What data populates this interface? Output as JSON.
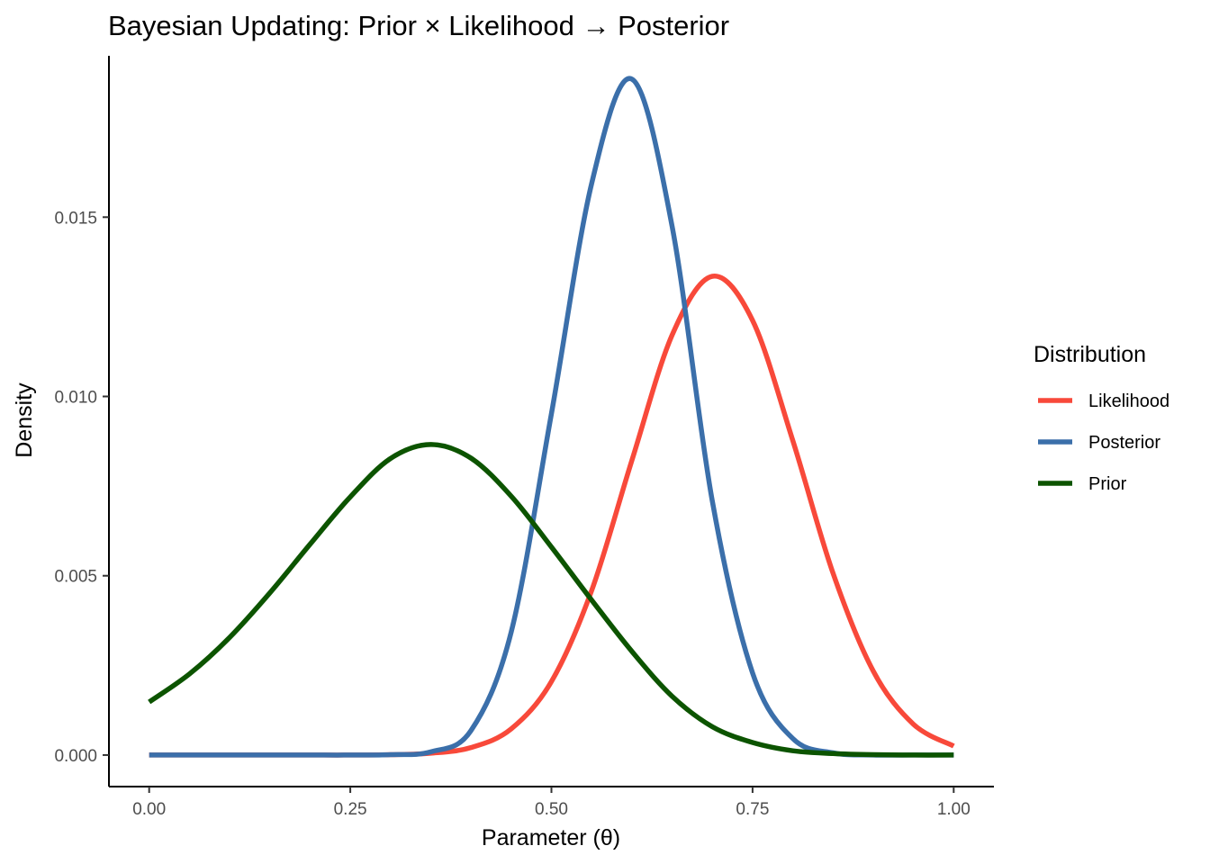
{
  "chart_data": {
    "type": "line",
    "title": "Bayesian Updating: Prior × Likelihood → Posterior",
    "xlabel": "Parameter (θ)",
    "ylabel": "Density",
    "xlim": [
      -0.05,
      1.05
    ],
    "ylim": [
      -0.00088,
      0.0195
    ],
    "x_ticks": [
      0.0,
      0.25,
      0.5,
      0.75,
      1.0
    ],
    "x_tick_labels": [
      "0.00",
      "0.25",
      "0.50",
      "0.75",
      "1.00"
    ],
    "y_ticks": [
      0.0,
      0.005,
      0.01,
      0.015
    ],
    "y_tick_labels": [
      "0.000",
      "0.005",
      "0.010",
      "0.015"
    ],
    "grid": false,
    "legend": {
      "title": "Distribution",
      "position": "right"
    },
    "x": [
      0.0,
      0.05,
      0.1,
      0.15,
      0.2,
      0.25,
      0.3,
      0.35,
      0.4,
      0.45,
      0.5,
      0.55,
      0.6,
      0.65,
      0.7,
      0.75,
      0.8,
      0.85,
      0.9,
      0.95,
      1.0
    ],
    "series": [
      {
        "name": "Likelihood",
        "color": "#F8493A",
        "values": [
          0.0,
          0.0,
          0.0,
          0.0,
          0.0,
          0.0,
          1e-05,
          5e-05,
          0.00021,
          0.00073,
          0.00205,
          0.00459,
          0.00822,
          0.01171,
          0.01335,
          0.01212,
          0.00877,
          0.00507,
          0.00234,
          0.00086,
          0.00025
        ]
      },
      {
        "name": "Posterior",
        "color": "#3B6FAA",
        "values": [
          0.0,
          0.0,
          0.0,
          0.0,
          0.0,
          0.0,
          1e-05,
          9e-05,
          0.00068,
          0.00343,
          0.00952,
          0.01594,
          0.01885,
          0.01475,
          0.00708,
          0.00229,
          0.00046,
          6e-05,
          0.0,
          0.0,
          0.0
        ]
      },
      {
        "name": "Prior",
        "color": "#0C5400",
        "values": [
          0.00148,
          0.00226,
          0.00328,
          0.00452,
          0.00588,
          0.0072,
          0.00827,
          0.00866,
          0.00828,
          0.00722,
          0.0058,
          0.00432,
          0.00289,
          0.00164,
          0.00079,
          0.00035,
          0.00012,
          4e-05,
          1e-05,
          0.0,
          0.0
        ]
      }
    ]
  }
}
